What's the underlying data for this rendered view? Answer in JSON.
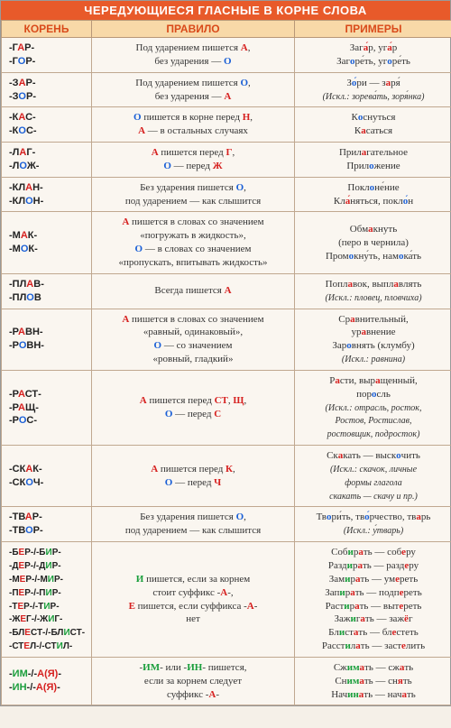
{
  "title": "ЧЕРЕДУЮЩИЕСЯ ГЛАСНЫЕ В КОРНЕ СЛОВА",
  "headers": {
    "root": "КОРЕНЬ",
    "rule": "ПРАВИЛО",
    "examples": "ПРИМЕРЫ"
  },
  "rows": [
    {
      "root": "-Г<span class='r'>А</span>Р-<br>-Г<span class='b'>О</span>Р-",
      "rule": "Под ударением пишется <span class='r'>А</span>,<br>без ударения — <span class='b'>О</span>",
      "ex": "Заг<span class='r'>а́</span>р, уг<span class='r'>а́</span>р<br>Заг<span class='b'>о</span>ре́ть, уг<span class='b'>о</span>ре́ть"
    },
    {
      "root": "-З<span class='r'>А</span>Р-<br>-З<span class='b'>О</span>Р-",
      "rule": "Под ударением пишется <span class='b'>О</span>,<br>без ударения — <span class='r'>А</span>",
      "ex": "З<span class='b'>о́</span>ри — з<span class='r'>а</span>ря́<br><span class='it sm'>(Искл.: зорева́ть, зоря́нка)</span>"
    },
    {
      "root": "-К<span class='r'>А</span>С-<br>-К<span class='b'>О</span>С-",
      "rule": "<span class='b'>О</span> пишется в корне перед <span class='r'>Н</span>,<br><span class='r'>А</span> — в остальных случаях",
      "ex": "К<span class='b'>о</span>снуться<br>К<span class='r'>а</span>саться"
    },
    {
      "root": "-Л<span class='r'>А</span>Г-<br>-Л<span class='b'>О</span>Ж-",
      "rule": "<span class='r'>А</span> пишется перед <span class='r'>Г</span>,<br><span class='b'>О</span> — перед <span class='r'>Ж</span>",
      "ex": "Прил<span class='r'>а</span>гательное<br>Прил<span class='b'>о</span>жение"
    },
    {
      "root": "-КЛ<span class='r'>А</span>Н-<br>-КЛ<span class='b'>О</span>Н-",
      "rule": "Без ударения пишется <span class='b'>О</span>,<br>под ударением — как слышится",
      "ex": "Покл<span class='b'>о</span>не́ние<br>Кл<span class='r'>а́</span>няться, покл<span class='b'>о́</span>н"
    },
    {
      "root": "-М<span class='r'>А</span>К-<br>-М<span class='b'>О</span>К-",
      "rule": "<span class='r'>А</span> пишется в словах со значением<br>«погружать в жидкость»,<br><span class='b'>О</span> — в словах со значением<br>«пропускать, впитывать жидкость»",
      "ex": "Обм<span class='r'>а</span>кнуть<br>(перо в чернила)<br>Пром<span class='b'>о</span>кну́ть, нам<span class='b'>о</span>ка́ть"
    },
    {
      "root": "-ПЛ<span class='r'>А</span>В-<br>-ПЛ<span class='b'>О</span>В",
      "rule": "Всегда пишется <span class='r'>А</span>",
      "ex": "Попл<span class='r'>а</span>вок, выпл<span class='r'>а</span>влять<br><span class='it sm'>(Искл.: пловец, пловчиха)</span>"
    },
    {
      "root": "-Р<span class='r'>А</span>ВН-<br>-Р<span class='b'>О</span>ВН-",
      "rule": "<span class='r'>А</span> пишется в словах со значением<br>«равный, одинаковый»,<br><span class='b'>О</span> — со значением<br>«ровный, гладкий»",
      "ex": "Ср<span class='r'>а</span>внительный,<br>ур<span class='r'>а</span>внение<br>Зар<span class='b'>о</span>внять (клумбу)<br><span class='it sm'>(Искл.: равнина)</span>"
    },
    {
      "root": "-Р<span class='r'>А</span>СТ-<br>-Р<span class='r'>А</span>Щ-<br>-Р<span class='b'>О</span>С-",
      "rule": "<span class='r'>А</span> пишется перед <span class='r'>СТ</span>, <span class='r'>Щ</span>,<br><span class='b'>О</span> — перед <span class='r'>С</span>",
      "ex": "Р<span class='r'>а</span>сти, выр<span class='r'>а</span>щенный,<br>пор<span class='b'>о</span>сль<br><span class='it sm'>(Искл.: отрасль, росток,<br>Ростов, Ростислав,<br>ростовщик, подросток)</span>"
    },
    {
      "root": "-СК<span class='r'>А</span>К-<br>-СК<span class='b'>О</span>Ч-",
      "rule": "<span class='r'>А</span> пишется перед <span class='r'>К</span>,<br><span class='b'>О</span> — перед <span class='r'>Ч</span>",
      "ex": "Ск<span class='r'>а</span>кать — выск<span class='b'>о</span>чить<br><span class='it sm'>(Искл.: скачок, личные<br>формы глагола<br>скакать — скачу и пр.)</span>"
    },
    {
      "root": "-ТВ<span class='r'>А</span>Р-<br>-ТВ<span class='b'>О</span>Р-",
      "rule": "Без ударения пишется <span class='b'>О</span>,<br>под ударением — как слышится",
      "ex": "Тв<span class='b'>о</span>ри́ть, тв<span class='b'>о́</span>рчество, тв<span class='r'>а</span>рь<br><span class='it sm'>(Искл.: у́тварь)</span>"
    },
    {
      "root": "<span class='sm'>-Б<span class='r'>Е</span>Р-/-Б<span class='g'>И</span>Р-<br>-Д<span class='r'>Е</span>Р-/-Д<span class='g'>И</span>Р-<br>-М<span class='r'>Е</span>Р-/-М<span class='g'>И</span>Р-<br>-П<span class='r'>Е</span>Р-/-П<span class='g'>И</span>Р-<br>-Т<span class='r'>Е</span>Р-/-Т<span class='g'>И</span>Р-<br>-Ж<span class='r'>Е</span>Г-/-Ж<span class='g'>И</span>Г-<br>-БЛ<span class='r'>Е</span>СТ-/-БЛ<span class='g'>И</span>СТ-<br>-СТ<span class='r'>Е</span>Л-/-СТ<span class='g'>И</span>Л-</span>",
      "rule": "<span class='g'>И</span> пишется, если за корнем<br>стоит суффикс -<span class='r'>А</span>-,<br><span class='r'>Е</span> пишется, если суффикса -<span class='r'>А</span>-<br>нет",
      "ex": "Соб<span class='g'>и</span>р<span class='r'>а</span>ть — соб<span class='r'>е</span>ру<br>Разд<span class='g'>и</span>р<span class='r'>а</span>ть — разд<span class='r'>е</span>ру<br>Зам<span class='g'>и</span>р<span class='r'>а</span>ть — ум<span class='r'>е</span>реть<br>Зап<span class='g'>и</span>р<span class='r'>а</span>ть — подп<span class='r'>е</span>реть<br>Раст<span class='g'>и</span>р<span class='r'>а</span>ть — выт<span class='r'>е</span>реть<br>Заж<span class='g'>и</span>г<span class='r'>а</span>ть — заж<span class='r'>ё</span>г<br>Бл<span class='g'>и</span>ст<span class='r'>а</span>ть — бл<span class='r'>е</span>стеть<br>Расст<span class='g'>и</span>л<span class='r'>а</span>ть — заст<span class='r'>е</span>лить"
    },
    {
      "root": "-<span class='g'>ИМ</span>-/-<span class='r'>А(Я)</span>-<br>-<span class='g'>ИН</span>-/-<span class='r'>А(Я)</span>-",
      "rule": "-<span class='g'>ИМ</span>- или -<span class='g'>ИН</span>- пишется,<br>если за корнем следует<br>суффикс -<span class='r'>А</span>-",
      "ex": "Сж<span class='g'>им</span><span class='r'>а</span>ть — сж<span class='r'>а</span>ть<br>Сн<span class='g'>им</span><span class='r'>а</span>ть — сн<span class='r'>я</span>ть<br>Нач<span class='g'>ин</span><span class='r'>а</span>ть — нач<span class='r'>а</span>ть"
    }
  ]
}
